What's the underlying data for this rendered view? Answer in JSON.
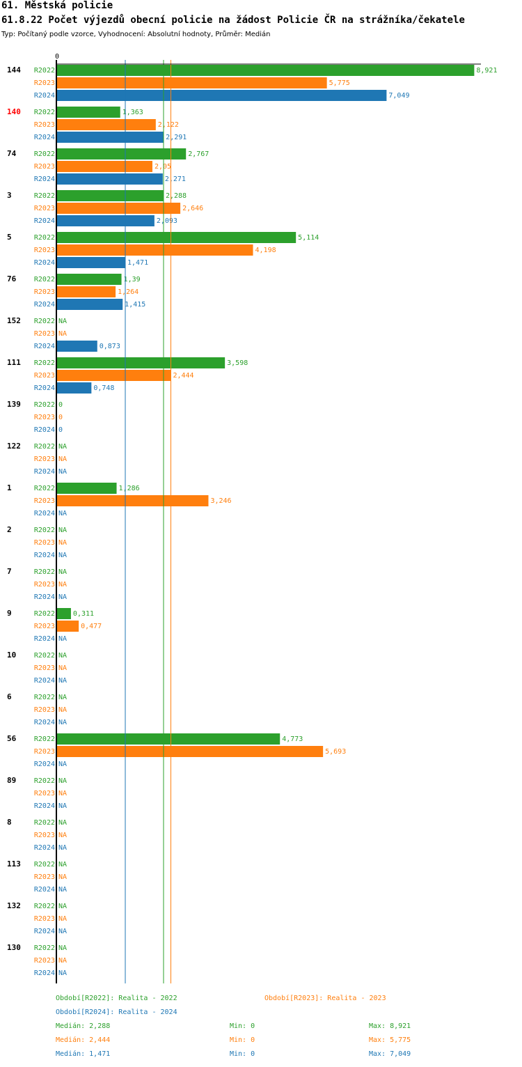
{
  "header": {
    "title": "61. Městská policie",
    "subtitle": "61.8.22 Počet výjezdů obecní policie na žádost Policie ČR na strážníka/čekatele",
    "meta": "Typ: Počítaný podle vzorce, Vyhodnocení: Absolutní hodnoty, Průměr: Medián"
  },
  "colors": {
    "R2022": "#2ca02c",
    "R2023": "#ff7f0e",
    "R2024": "#1f77b4",
    "highlight": "#ff0000"
  },
  "chart_data": {
    "type": "bar",
    "orientation": "horizontal",
    "axis_zero_label": "0",
    "xlim": [
      0,
      8.921
    ],
    "series_names": [
      "R2022",
      "R2023",
      "R2024"
    ],
    "highlight_category": "140",
    "categories": [
      {
        "label": "144",
        "values": [
          8.921,
          5.775,
          7.049
        ],
        "labels": [
          "8,921",
          "5,775",
          "7,049"
        ]
      },
      {
        "label": "140",
        "values": [
          1.363,
          2.122,
          2.291
        ],
        "labels": [
          "1,363",
          "2,122",
          "2,291"
        ]
      },
      {
        "label": "74",
        "values": [
          2.767,
          2.05,
          2.271
        ],
        "labels": [
          "2,767",
          "2,05",
          "2,271"
        ]
      },
      {
        "label": "3",
        "values": [
          2.288,
          2.646,
          2.093
        ],
        "labels": [
          "2,288",
          "2,646",
          "2,093"
        ]
      },
      {
        "label": "5",
        "values": [
          5.114,
          4.198,
          1.471
        ],
        "labels": [
          "5,114",
          "4,198",
          "1,471"
        ]
      },
      {
        "label": "76",
        "values": [
          1.39,
          1.264,
          1.415
        ],
        "labels": [
          "1,39",
          "1,264",
          "1,415"
        ]
      },
      {
        "label": "152",
        "values": [
          null,
          null,
          0.873
        ],
        "labels": [
          "NA",
          "NA",
          "0,873"
        ]
      },
      {
        "label": "111",
        "values": [
          3.598,
          2.444,
          0.748
        ],
        "labels": [
          "3,598",
          "2,444",
          "0,748"
        ]
      },
      {
        "label": "139",
        "values": [
          0,
          0,
          0
        ],
        "labels": [
          "0",
          "0",
          "0"
        ]
      },
      {
        "label": "122",
        "values": [
          null,
          null,
          null
        ],
        "labels": [
          "NA",
          "NA",
          "NA"
        ]
      },
      {
        "label": "1",
        "values": [
          1.286,
          3.246,
          null
        ],
        "labels": [
          "1,286",
          "3,246",
          "NA"
        ]
      },
      {
        "label": "2",
        "values": [
          null,
          null,
          null
        ],
        "labels": [
          "NA",
          "NA",
          "NA"
        ]
      },
      {
        "label": "7",
        "values": [
          null,
          null,
          null
        ],
        "labels": [
          "NA",
          "NA",
          "NA"
        ]
      },
      {
        "label": "9",
        "values": [
          0.311,
          0.477,
          null
        ],
        "labels": [
          "0,311",
          "0,477",
          "NA"
        ]
      },
      {
        "label": "10",
        "values": [
          null,
          null,
          null
        ],
        "labels": [
          "NA",
          "NA",
          "NA"
        ]
      },
      {
        "label": "6",
        "values": [
          null,
          null,
          null
        ],
        "labels": [
          "NA",
          "NA",
          "NA"
        ]
      },
      {
        "label": "56",
        "values": [
          4.773,
          5.693,
          null
        ],
        "labels": [
          "4,773",
          "5,693",
          "NA"
        ]
      },
      {
        "label": "89",
        "values": [
          null,
          null,
          null
        ],
        "labels": [
          "NA",
          "NA",
          "NA"
        ]
      },
      {
        "label": "8",
        "values": [
          null,
          null,
          null
        ],
        "labels": [
          "NA",
          "NA",
          "NA"
        ]
      },
      {
        "label": "113",
        "values": [
          null,
          null,
          null
        ],
        "labels": [
          "NA",
          "NA",
          "NA"
        ]
      },
      {
        "label": "132",
        "values": [
          null,
          null,
          null
        ],
        "labels": [
          "NA",
          "NA",
          "NA"
        ]
      },
      {
        "label": "130",
        "values": [
          null,
          null,
          null
        ],
        "labels": [
          "NA",
          "NA",
          "NA"
        ]
      }
    ],
    "medians": [
      2.288,
      2.444,
      1.471
    ]
  },
  "legend": {
    "period_R2022": "Období[R2022]: Realita - 2022",
    "period_R2023": "Období[R2023]: Realita - 2023",
    "period_R2024": "Období[R2024]: Realita - 2024",
    "stats": [
      {
        "median": "Medián: 2,288",
        "min": "Min: 0",
        "max": "Max: 8,921"
      },
      {
        "median": "Medián: 2,444",
        "min": "Min: 0",
        "max": "Max: 5,775"
      },
      {
        "median": "Medián: 1,471",
        "min": "Min: 0",
        "max": "Max: 7,049"
      }
    ]
  }
}
